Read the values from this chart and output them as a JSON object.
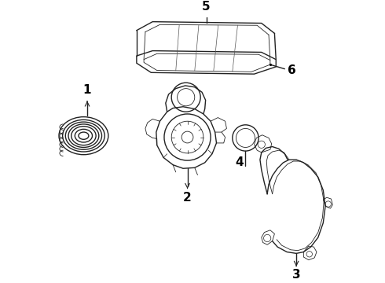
{
  "background_color": "#ffffff",
  "line_color": "#222222",
  "label_color": "#000000",
  "figsize": [
    4.9,
    3.6
  ],
  "dpi": 100,
  "label_fontsize": 11,
  "label_fontweight": "bold"
}
